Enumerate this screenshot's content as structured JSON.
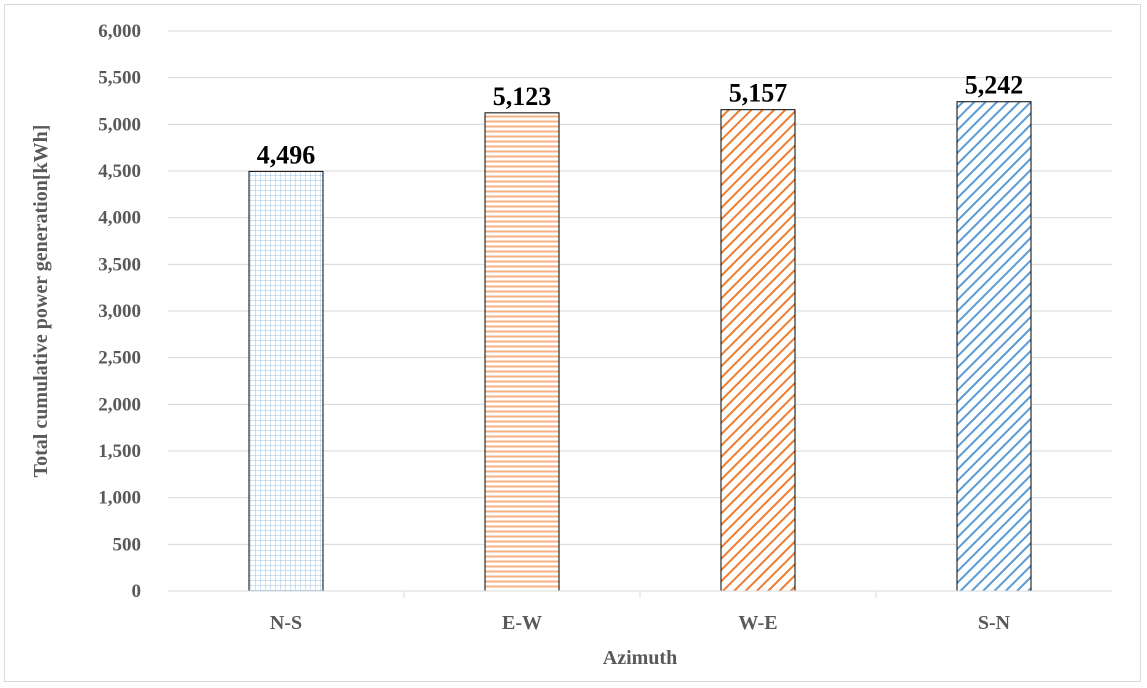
{
  "chart_data": {
    "type": "bar",
    "categories": [
      "N-S",
      "E-W",
      "W-E",
      "S-N"
    ],
    "values": [
      4496,
      5123,
      5157,
      5242
    ],
    "data_labels": [
      "4,496",
      "5,123",
      "5,157",
      "5,242"
    ],
    "xlabel": "Azimuth",
    "ylabel": "Total cumulative  power generation[kWh]",
    "ylim": [
      0,
      6000
    ],
    "yticks": [
      0,
      500,
      1000,
      1500,
      2000,
      2500,
      3000,
      3500,
      4000,
      4500,
      5000,
      5500,
      6000
    ],
    "ytick_labels": [
      "0",
      "500",
      "1,000",
      "1,500",
      "2,000",
      "2,500",
      "3,000",
      "3,500",
      "4,000",
      "4,500",
      "5,000",
      "5,500",
      "6,000"
    ],
    "grid": true,
    "bar_styles": [
      {
        "pattern": "grid",
        "color": "#9dc3e6"
      },
      {
        "pattern": "horizontal",
        "color": "#f4b183"
      },
      {
        "pattern": "diagonal",
        "color": "#ed7d31"
      },
      {
        "pattern": "diagonal",
        "color": "#5b9bd5"
      }
    ]
  }
}
